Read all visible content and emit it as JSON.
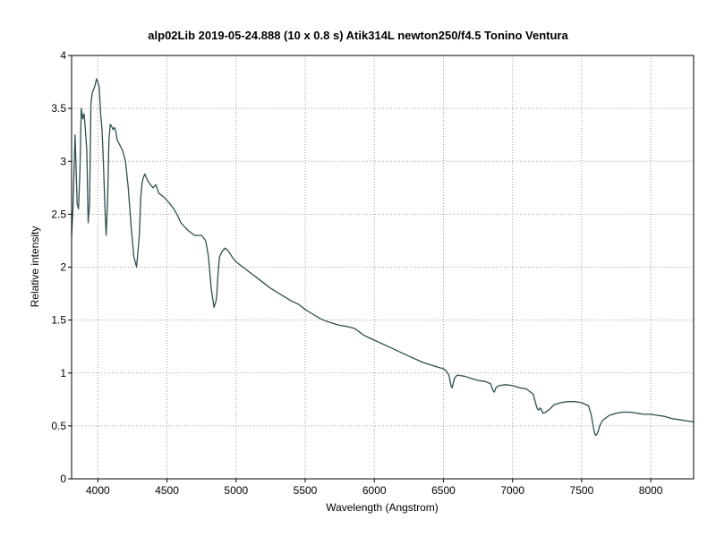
{
  "chart_data": {
    "type": "line",
    "title": "alp02Lib   2019-05-24.888  (10 x 0.8 s)  Atik314L newton250/f4.5 Tonino Ventura",
    "xlabel": "Wavelength (Angstrom)",
    "ylabel": "Relative intensity",
    "xlim": [
      3810,
      8310
    ],
    "ylim": [
      0,
      4
    ],
    "x_ticks": [
      4000,
      4500,
      5000,
      5500,
      6000,
      6500,
      7000,
      7500,
      8000
    ],
    "y_ticks": [
      0,
      0.5,
      1,
      1.5,
      2,
      2.5,
      3,
      3.5,
      4
    ],
    "y_tick_labels": [
      "0",
      "0.5",
      "1",
      "1.5",
      "2",
      "2.5",
      "3",
      "3.5",
      "4"
    ],
    "grid": true,
    "colors": {
      "line": "#2f4f4f",
      "grid": "#a0a0a0",
      "frame": "#000000"
    },
    "series": [
      {
        "x": [
          3810,
          3820,
          3835,
          3850,
          3860,
          3870,
          3880,
          3890,
          3900,
          3910,
          3920,
          3930,
          3940,
          3950,
          3960,
          3970,
          3975,
          3980,
          3990,
          4000,
          4010,
          4020,
          4030,
          4040,
          4050,
          4060,
          4070,
          4080,
          4090,
          4100,
          4110,
          4120,
          4130,
          4140,
          4160,
          4180,
          4200,
          4220,
          4240,
          4260,
          4280,
          4300,
          4310,
          4320,
          4330,
          4340,
          4350,
          4360,
          4380,
          4400,
          4420,
          4440,
          4460,
          4480,
          4500,
          4520,
          4550,
          4580,
          4600,
          4650,
          4700,
          4750,
          4780,
          4800,
          4820,
          4840,
          4855,
          4861,
          4870,
          4880,
          4900,
          4920,
          4940,
          4960,
          4980,
          5000,
          5050,
          5100,
          5150,
          5200,
          5250,
          5300,
          5350,
          5400,
          5450,
          5500,
          5550,
          5600,
          5650,
          5700,
          5750,
          5800,
          5830,
          5860,
          5880,
          5900,
          5920,
          5950,
          6000,
          6050,
          6100,
          6150,
          6200,
          6250,
          6300,
          6350,
          6400,
          6450,
          6500,
          6520,
          6540,
          6555,
          6563,
          6570,
          6580,
          6600,
          6650,
          6700,
          6750,
          6800,
          6840,
          6860,
          6868,
          6880,
          6900,
          6950,
          7000,
          7050,
          7100,
          7150,
          7170,
          7180,
          7190,
          7200,
          7210,
          7220,
          7240,
          7270,
          7300,
          7350,
          7400,
          7450,
          7500,
          7550,
          7570,
          7590,
          7600,
          7610,
          7620,
          7630,
          7650,
          7680,
          7700,
          7750,
          7800,
          7850,
          7900,
          7950,
          8000,
          8050,
          8100,
          8150,
          8200,
          8250,
          8300,
          8310
        ],
        "values": [
          2.3,
          2.55,
          3.25,
          2.6,
          2.55,
          2.9,
          3.5,
          3.4,
          3.45,
          3.3,
          3.1,
          2.42,
          2.6,
          3.55,
          3.65,
          3.68,
          3.7,
          3.72,
          3.78,
          3.75,
          3.7,
          3.45,
          3.3,
          3.0,
          2.6,
          2.3,
          2.62,
          3.2,
          3.35,
          3.33,
          3.3,
          3.32,
          3.28,
          3.2,
          3.15,
          3.1,
          3.0,
          2.75,
          2.4,
          2.1,
          2.0,
          2.3,
          2.65,
          2.8,
          2.85,
          2.88,
          2.85,
          2.82,
          2.78,
          2.75,
          2.78,
          2.7,
          2.68,
          2.66,
          2.63,
          2.6,
          2.55,
          2.48,
          2.42,
          2.35,
          2.3,
          2.3,
          2.25,
          2.1,
          1.8,
          1.62,
          1.68,
          1.75,
          1.95,
          2.1,
          2.15,
          2.18,
          2.16,
          2.12,
          2.08,
          2.05,
          2.0,
          1.95,
          1.9,
          1.85,
          1.8,
          1.76,
          1.72,
          1.68,
          1.65,
          1.6,
          1.56,
          1.52,
          1.49,
          1.47,
          1.45,
          1.44,
          1.43,
          1.42,
          1.4,
          1.38,
          1.36,
          1.34,
          1.31,
          1.28,
          1.25,
          1.22,
          1.19,
          1.16,
          1.13,
          1.1,
          1.08,
          1.06,
          1.04,
          1.02,
          0.98,
          0.88,
          0.86,
          0.9,
          0.95,
          0.98,
          0.97,
          0.95,
          0.93,
          0.92,
          0.9,
          0.83,
          0.82,
          0.86,
          0.88,
          0.89,
          0.88,
          0.86,
          0.85,
          0.8,
          0.7,
          0.66,
          0.65,
          0.67,
          0.65,
          0.62,
          0.63,
          0.66,
          0.7,
          0.72,
          0.73,
          0.73,
          0.72,
          0.69,
          0.6,
          0.45,
          0.41,
          0.42,
          0.45,
          0.5,
          0.55,
          0.58,
          0.6,
          0.62,
          0.63,
          0.63,
          0.62,
          0.61,
          0.61,
          0.6,
          0.59,
          0.57,
          0.56,
          0.55,
          0.54,
          0.54
        ]
      }
    ]
  }
}
